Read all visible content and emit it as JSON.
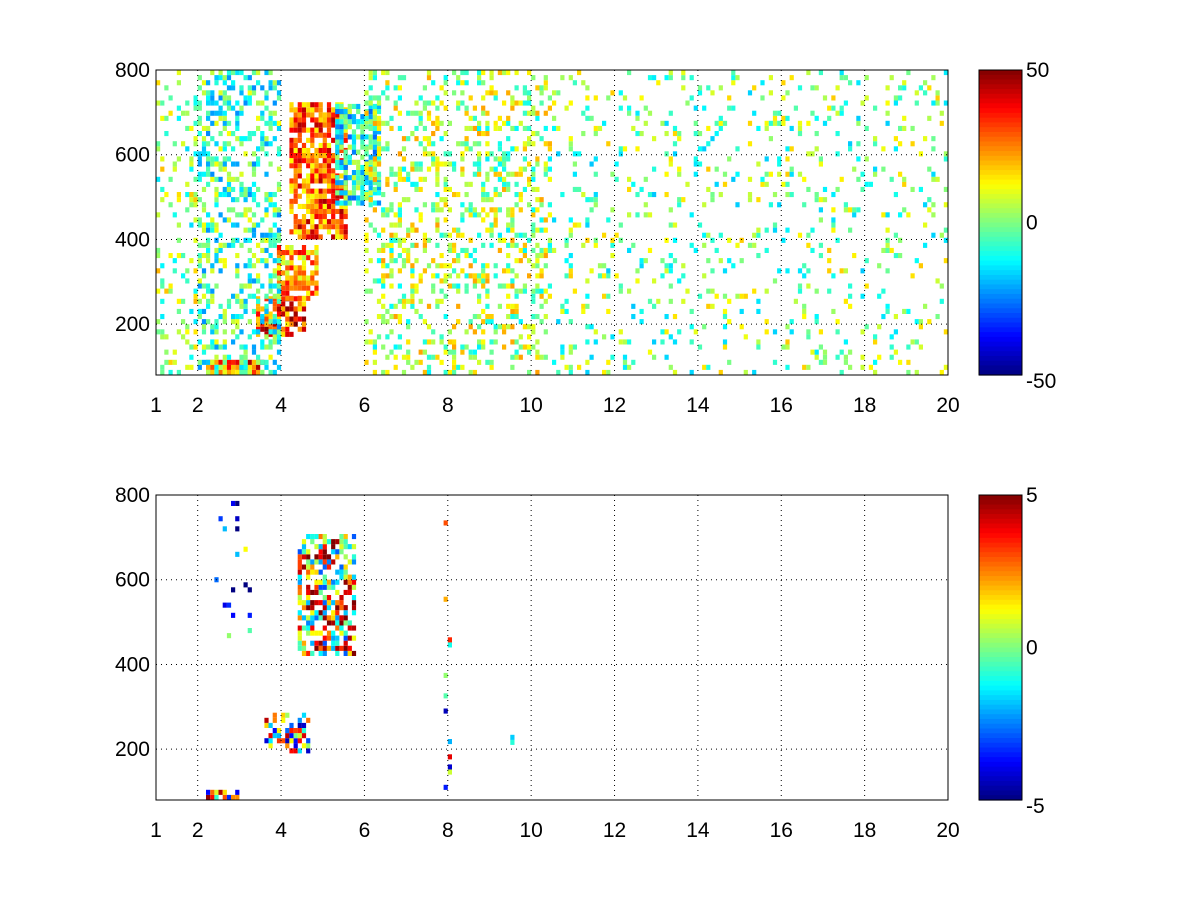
{
  "figure": {
    "background": "#ffffff",
    "colormap": "jet"
  },
  "chart_data": [
    {
      "type": "heatmap",
      "title": "",
      "xlabel": "",
      "ylabel": "",
      "xlim": [
        1,
        20
      ],
      "ylim": [
        80,
        800
      ],
      "xticks": [
        1,
        2,
        4,
        6,
        8,
        10,
        12,
        14,
        16,
        18,
        20
      ],
      "xtick_labels": [
        "1",
        "2",
        "4",
        "6",
        "8",
        "10",
        "12",
        "14",
        "16",
        "18",
        "20"
      ],
      "yticks": [
        200,
        400,
        600,
        800
      ],
      "ytick_labels": [
        "200",
        "400",
        "600",
        "800"
      ],
      "grid": true,
      "grid_style": "dotted",
      "colorbar": {
        "min": -50,
        "max": 50,
        "tick_labels": [
          "50",
          "0",
          "-50"
        ]
      },
      "regions": [
        {
          "x": [
            2.2,
            3.6
          ],
          "y": [
            80,
            115
          ],
          "value": 28,
          "density": 0.85
        },
        {
          "x": [
            3.4,
            4.6
          ],
          "y": [
            170,
            260
          ],
          "value": 32,
          "density": 0.8
        },
        {
          "x": [
            3.9,
            4.9
          ],
          "y": [
            255,
            380
          ],
          "value": 22,
          "density": 0.75
        },
        {
          "x": [
            4.2,
            5.6
          ],
          "y": [
            400,
            720
          ],
          "value": 28,
          "density": 0.8
        },
        {
          "x": [
            5.3,
            6.4
          ],
          "y": [
            480,
            720
          ],
          "value": -10,
          "density": 0.7
        },
        {
          "x": [
            1.0,
            2.0
          ],
          "y": [
            80,
            800
          ],
          "value": 2,
          "density": 0.2
        },
        {
          "x": [
            2.0,
            4.0
          ],
          "y": [
            80,
            800
          ],
          "value": -6,
          "density": 0.4
        },
        {
          "x": [
            6.0,
            10.5
          ],
          "y": [
            80,
            800
          ],
          "value": 4,
          "density": 0.3
        },
        {
          "x": [
            10.5,
            20.0
          ],
          "y": [
            80,
            800
          ],
          "value": 0,
          "density": 0.14
        }
      ]
    },
    {
      "type": "heatmap",
      "title": "",
      "xlabel": "",
      "ylabel": "",
      "xlim": [
        1,
        20
      ],
      "ylim": [
        80,
        800
      ],
      "xticks": [
        1,
        2,
        4,
        6,
        8,
        10,
        12,
        14,
        16,
        18,
        20
      ],
      "xtick_labels": [
        "1",
        "2",
        "4",
        "6",
        "8",
        "10",
        "12",
        "14",
        "16",
        "18",
        "20"
      ],
      "yticks": [
        200,
        400,
        600,
        800
      ],
      "ytick_labels": [
        "200",
        "400",
        "600",
        "800"
      ],
      "grid": true,
      "grid_style": "dotted",
      "colorbar": {
        "min": -5,
        "max": 5,
        "tick_labels": [
          "5",
          "0",
          "-5"
        ]
      },
      "regions": [
        {
          "x": [
            2.2,
            3.0
          ],
          "y": [
            80,
            100
          ],
          "value": 0.5,
          "density": 0.8
        },
        {
          "x": [
            3.6,
            4.7
          ],
          "y": [
            190,
            280
          ],
          "value": 0,
          "density": 0.55
        },
        {
          "x": [
            4.4,
            5.8
          ],
          "y": [
            420,
            700
          ],
          "value": 1.5,
          "density": 0.65
        },
        {
          "x": [
            2.4,
            3.3
          ],
          "y": [
            450,
            780
          ],
          "value": -3,
          "density": 0.05
        },
        {
          "x": [
            7.9,
            8.1
          ],
          "y": [
            80,
            800
          ],
          "value": 0,
          "density": 0.08
        },
        {
          "x": [
            9.3,
            9.6
          ],
          "y": [
            210,
            230
          ],
          "value": -1,
          "density": 0.4
        }
      ]
    }
  ]
}
